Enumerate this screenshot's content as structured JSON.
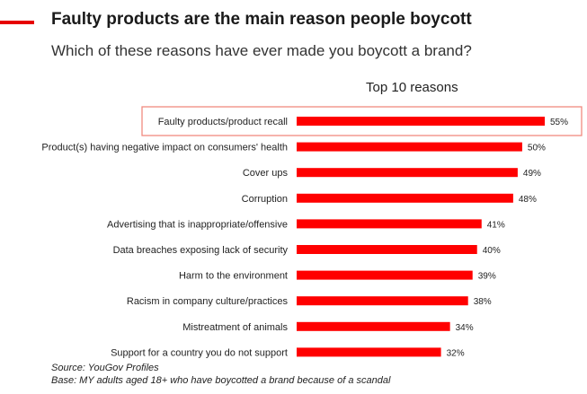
{
  "header": {
    "title": "Faulty products are the main reason people boycott",
    "subtitle": "Which of these reasons have ever made you boycott a brand?"
  },
  "colors": {
    "accent": "#e60000",
    "bar": "#ff0000",
    "highlight_border": "#f08a80"
  },
  "chart_data": {
    "type": "bar",
    "orientation": "horizontal",
    "title": "Top 10 reasons",
    "categories": [
      "Faulty products/product recall",
      "Product(s) having negative impact on consumers' health",
      "Cover ups",
      "Corruption",
      "Advertising that is inappropriate/offensive",
      "Data breaches exposing lack of security",
      "Harm to the environment",
      "Racism in company culture/practices",
      "Mistreatment of animals",
      "Support for a country you do not support"
    ],
    "values": [
      55,
      50,
      49,
      48,
      41,
      40,
      39,
      38,
      34,
      32
    ],
    "value_labels": [
      "55%",
      "50%",
      "49%",
      "48%",
      "41%",
      "40%",
      "39%",
      "38%",
      "34%",
      "32%"
    ],
    "unit": "%",
    "highlighted_index": 0,
    "xlim": [
      0,
      55
    ]
  },
  "footnotes": {
    "source": "Source: YouGov Profiles",
    "base": "Base: MY adults aged 18+ who have boycotted a brand because of a scandal"
  }
}
